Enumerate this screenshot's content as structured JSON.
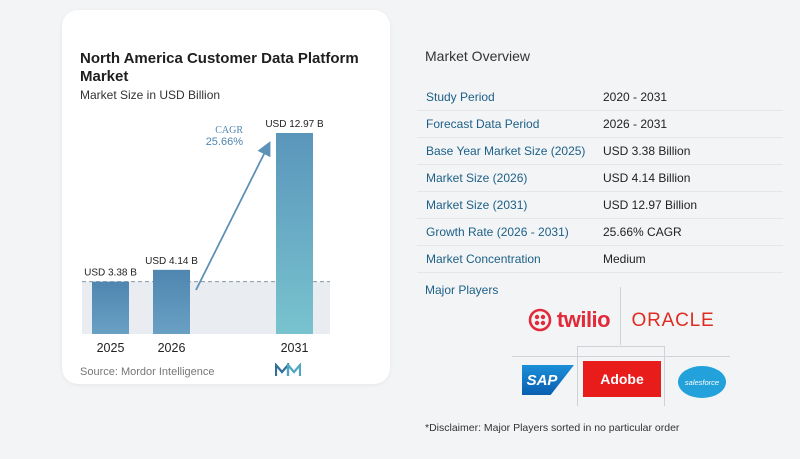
{
  "chart_data": {
    "type": "bar",
    "title": "North America Customer Data Platform Market",
    "subtitle": "Market Size in USD Billion",
    "categories": [
      "2025",
      "2026",
      "2031"
    ],
    "values": [
      3.38,
      4.14,
      12.97
    ],
    "value_labels": [
      "USD 3.38 B",
      "USD 4.14 B",
      "USD 12.97 B"
    ],
    "cagr_label": "CAGR",
    "cagr_value": "25.66%",
    "colors": {
      "bar": "#5b8fb5",
      "bar_last": "#66b6c9",
      "band": "#dfe6ec",
      "arrow": "#5d92b8"
    }
  },
  "source": "Source: Mordor Intelligence",
  "overview": {
    "title": "Market Overview",
    "rows": [
      {
        "label": "Study Period",
        "value": "2020 - 2031"
      },
      {
        "label": "Forecast Data Period",
        "value": "2026 - 2031"
      },
      {
        "label": "Base Year Market Size (2025)",
        "value": "USD 3.38 Billion"
      },
      {
        "label": "Market Size (2026)",
        "value": "USD 4.14 Billion"
      },
      {
        "label": "Market Size (2031)",
        "value": "USD 12.97 Billion"
      },
      {
        "label": "Growth Rate (2026 - 2031)",
        "value": "25.66% CAGR"
      },
      {
        "label": "Market Concentration",
        "value": "Medium"
      }
    ]
  },
  "players": {
    "title": "Major Players",
    "logos": {
      "twilio": "twilio",
      "oracle": "ORACLE",
      "sap": "SAP",
      "adobe": "Adobe",
      "salesforce": "salesforce"
    }
  },
  "disclaimer": "*Disclaimer: Major Players sorted in no particular order"
}
